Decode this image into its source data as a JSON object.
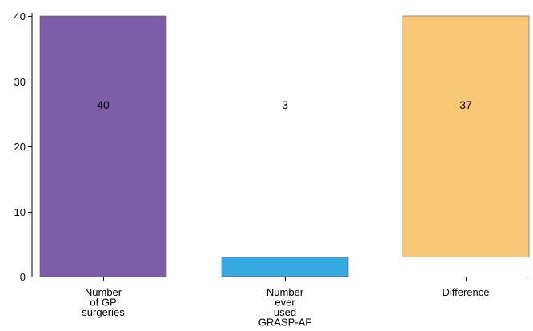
{
  "chart_data": {
    "type": "bar",
    "subtype": "waterfall",
    "title": "",
    "xlabel": "",
    "ylabel": "",
    "ylim": [
      0,
      40
    ],
    "yticks": [
      0,
      10,
      20,
      30,
      40
    ],
    "grid": false,
    "legend": "none",
    "categories": [
      [
        "Number",
        "of GP",
        "surgeries"
      ],
      [
        "Number",
        "ever",
        "used",
        "GRASP-AF"
      ],
      [
        "Difference"
      ]
    ],
    "bars": [
      {
        "label": "40",
        "value": 40,
        "base": 0,
        "top": 40,
        "color": "#7b5ea7"
      },
      {
        "label": "3",
        "value": 3,
        "base": 0,
        "top": 3,
        "color": "#35a9e0"
      },
      {
        "label": "37",
        "value": 37,
        "base": 3,
        "top": 40,
        "color": "#f9c877"
      }
    ]
  }
}
